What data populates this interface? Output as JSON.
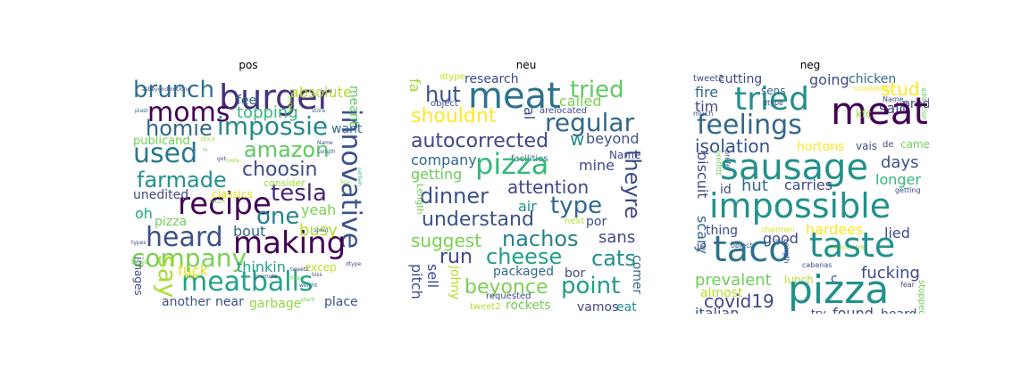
{
  "panels": [
    {
      "title": "pos",
      "words": [
        {
          "t": "burger",
          "c": "#46317e"
        },
        {
          "t": "brunch",
          "c": "#2c728e"
        },
        {
          "t": "moms",
          "c": "#440154"
        },
        {
          "t": "impossie",
          "c": "#238a8d"
        },
        {
          "t": "homie",
          "c": "#31688e"
        },
        {
          "t": "innovative",
          "c": "#3b528b"
        },
        {
          "t": "amazon",
          "c": "#5ec962"
        },
        {
          "t": "used",
          "c": "#2a788e"
        },
        {
          "t": "choosin",
          "c": "#3e4a89"
        },
        {
          "t": "farmade",
          "c": "#21918c"
        },
        {
          "t": "recipe",
          "c": "#440154"
        },
        {
          "t": "tesla",
          "c": "#482878"
        },
        {
          "t": "one",
          "c": "#26828e"
        },
        {
          "t": "heard",
          "c": "#3b528b"
        },
        {
          "t": "making",
          "c": "#440154"
        },
        {
          "t": "company",
          "c": "#7ad151"
        },
        {
          "t": "meatballs",
          "c": "#20a486"
        },
        {
          "t": "say",
          "c": "#aadc32"
        },
        {
          "t": "absolute",
          "c": "#b5de2b"
        },
        {
          "t": "topping",
          "c": "#35b779"
        },
        {
          "t": "feel",
          "c": "#31688e"
        },
        {
          "t": "want",
          "c": "#31688e"
        },
        {
          "t": "meant",
          "c": "#5ec962"
        },
        {
          "t": "publicand",
          "c": "#6ece58"
        },
        {
          "t": "unedited",
          "c": "#3e4a89"
        },
        {
          "t": "classics",
          "c": "#dfe318"
        },
        {
          "t": "oh",
          "c": "#22a884"
        },
        {
          "t": "pizza",
          "c": "#6ece58"
        },
        {
          "t": "yeah",
          "c": "#7ad151"
        },
        {
          "t": "busy",
          "c": "#b5de2b"
        },
        {
          "t": "bout",
          "c": "#31688e"
        },
        {
          "t": "fuck",
          "c": "#dfe318"
        },
        {
          "t": "thinkin",
          "c": "#1f9e89"
        },
        {
          "t": "excep",
          "c": "#bddf26"
        },
        {
          "t": "another",
          "c": "#3b528b"
        },
        {
          "t": "near",
          "c": "#3e4a89"
        },
        {
          "t": "garbage",
          "c": "#90d743"
        },
        {
          "t": "place",
          "c": "#3b528b"
        },
        {
          "t": "images",
          "c": "#3e4a89"
        },
        {
          "t": "consider",
          "c": "#a0da39"
        },
        {
          "t": "asbeyondblocking",
          "c": "#3e4a89"
        },
        {
          "t": "better",
          "c": "#8fd744"
        },
        {
          "t": "plast",
          "c": "#31688e"
        },
        {
          "t": "store",
          "c": "#31688e"
        },
        {
          "t": "Name",
          "c": "#3e4a89"
        },
        {
          "t": "Length",
          "c": "#31688e"
        },
        {
          "t": "certain",
          "c": "#35b779"
        },
        {
          "t": "spent",
          "c": "#31688e"
        },
        {
          "t": "dtype",
          "c": "#3e4a89"
        },
        {
          "t": "types",
          "c": "#3e4a89"
        },
        {
          "t": "based",
          "c": "#6ece58"
        },
        {
          "t": "tweet2",
          "c": "#3e4a89"
        },
        {
          "t": "fiber",
          "c": "#6ece58"
        },
        {
          "t": "loss",
          "c": "#3e4a89"
        },
        {
          "t": "weight",
          "c": "#31688e"
        },
        {
          "t": "plant",
          "c": "#6ece58"
        },
        {
          "t": "promote",
          "c": "#3e4a89"
        },
        {
          "t": "taste",
          "c": "#a0da39"
        },
        {
          "t": "object",
          "c": "#dfe318"
        },
        {
          "t": "block",
          "c": "#a0da39"
        },
        {
          "t": "got",
          "c": "#3e4a89"
        },
        {
          "t": "lo",
          "c": "#6ece58"
        },
        {
          "t": "much",
          "c": "#6ece58"
        },
        {
          "t": "buy",
          "c": "#a0da39"
        }
      ]
    },
    {
      "title": "neu",
      "words": [
        {
          "t": "meat",
          "c": "#2c728e"
        },
        {
          "t": "tried",
          "c": "#5ec962"
        },
        {
          "t": "hut",
          "c": "#3b528b"
        },
        {
          "t": "fa",
          "c": "#a0da39"
        },
        {
          "t": "research",
          "c": "#3e4a89"
        },
        {
          "t": "dtype",
          "c": "#c8e020"
        },
        {
          "t": "regular",
          "c": "#31688e"
        },
        {
          "t": "called",
          "c": "#7ad151"
        },
        {
          "t": "shouldnt",
          "c": "#fde725"
        },
        {
          "t": "al",
          "c": "#3e4a89"
        },
        {
          "t": "arelocated",
          "c": "#3e4a89"
        },
        {
          "t": "object",
          "c": "#3e4a89"
        },
        {
          "t": "autocorrected",
          "c": "#404688"
        },
        {
          "t": "w",
          "c": "#21918c"
        },
        {
          "t": "beyond",
          "c": "#3b528b"
        },
        {
          "t": "company",
          "c": "#31688e"
        },
        {
          "t": "facilities",
          "c": "#31688e"
        },
        {
          "t": "Name",
          "c": "#3e4a89"
        },
        {
          "t": "pizza",
          "c": "#35b779"
        },
        {
          "t": "mine",
          "c": "#3e4a89"
        },
        {
          "t": "theyre",
          "c": "#3e4a89"
        },
        {
          "t": "getting",
          "c": "#6ece58"
        },
        {
          "t": "attention",
          "c": "#3e4a89"
        },
        {
          "t": "dinner",
          "c": "#3b528b"
        },
        {
          "t": "type",
          "c": "#31688e"
        },
        {
          "t": "Length",
          "c": "#6ece58"
        },
        {
          "t": "air",
          "c": "#21918c"
        },
        {
          "t": "understand",
          "c": "#3b528b"
        },
        {
          "t": "por",
          "c": "#3e4a89"
        },
        {
          "t": "next",
          "c": "#b5de2b"
        },
        {
          "t": "suggest",
          "c": "#7ad151"
        },
        {
          "t": "nachos",
          "c": "#26828e"
        },
        {
          "t": "sans",
          "c": "#3e4a89"
        },
        {
          "t": "run",
          "c": "#3e4a89"
        },
        {
          "t": "cheese",
          "c": "#1f9e89"
        },
        {
          "t": "cats",
          "c": "#21918c"
        },
        {
          "t": "sell",
          "c": "#3e4a89"
        },
        {
          "t": "pitch",
          "c": "#3e4a89"
        },
        {
          "t": "johny",
          "c": "#b5de2b"
        },
        {
          "t": "packaged",
          "c": "#31688e"
        },
        {
          "t": "bor",
          "c": "#3e4a89"
        },
        {
          "t": "beyonce",
          "c": "#7ad151"
        },
        {
          "t": "point",
          "c": "#1f9e89"
        },
        {
          "t": "comer",
          "c": "#31688e"
        },
        {
          "t": "requested",
          "c": "#3e4a89"
        },
        {
          "t": "vamos",
          "c": "#3e4a89"
        },
        {
          "t": "eat",
          "c": "#21918c"
        },
        {
          "t": "tweet2",
          "c": "#b5de2b"
        },
        {
          "t": "rockets",
          "c": "#6ece58"
        }
      ]
    },
    {
      "title": "neg",
      "words": [
        {
          "t": "tweet2",
          "c": "#3e4a89"
        },
        {
          "t": "cutting",
          "c": "#3e4a89"
        },
        {
          "t": "tried",
          "c": "#21918c"
        },
        {
          "t": "chicken",
          "c": "#31688e"
        },
        {
          "t": "screaming",
          "c": "#fde725"
        },
        {
          "t": "stud",
          "c": "#fde725"
        },
        {
          "t": "addiction",
          "c": "#6ece58"
        },
        {
          "t": "fire",
          "c": "#31688e"
        },
        {
          "t": "sens",
          "c": "#31688e"
        },
        {
          "t": "going",
          "c": "#3e4a89"
        },
        {
          "t": "said",
          "c": "#3e4a89"
        },
        {
          "t": "produ",
          "c": "#3e4a89"
        },
        {
          "t": "tim",
          "c": "#3e4a89"
        },
        {
          "t": "dtype",
          "c": "#3e4a89"
        },
        {
          "t": "Name",
          "c": "#3e4a89"
        },
        {
          "t": "much",
          "c": "#3e4a89"
        },
        {
          "t": "meat",
          "c": "#440154"
        },
        {
          "t": "kfc",
          "c": "#a0da39"
        },
        {
          "t": "feelings",
          "c": "#31688e"
        },
        {
          "t": "isolation",
          "c": "#3b528b"
        },
        {
          "t": "hortons",
          "c": "#fde725"
        },
        {
          "t": "vais",
          "c": "#3e4a89"
        },
        {
          "t": "de",
          "c": "#3e4a89"
        },
        {
          "t": "came",
          "c": "#6ece58"
        },
        {
          "t": "biscuit",
          "c": "#3e4a89"
        },
        {
          "t": "prettttt",
          "c": "#6ece58"
        },
        {
          "t": "prefer",
          "c": "#3e4a89"
        },
        {
          "t": "sausage",
          "c": "#21918c"
        },
        {
          "t": "days",
          "c": "#3b528b"
        },
        {
          "t": "longer",
          "c": "#35b779"
        },
        {
          "t": "id",
          "c": "#3e4a89"
        },
        {
          "t": "hut",
          "c": "#31688e"
        },
        {
          "t": "carries",
          "c": "#3e4a89"
        },
        {
          "t": "getting",
          "c": "#3e4a89"
        },
        {
          "t": "scary",
          "c": "#31688e"
        },
        {
          "t": "impossible",
          "c": "#21918c"
        },
        {
          "t": "thing",
          "c": "#3e4a89"
        },
        {
          "t": "chairman",
          "c": "#dfe318"
        },
        {
          "t": "good",
          "c": "#3e4a89"
        },
        {
          "t": "hardees",
          "c": "#fde725"
        },
        {
          "t": "lied",
          "c": "#3e4a89"
        },
        {
          "t": "je",
          "c": "#3e4a89"
        },
        {
          "t": "object",
          "c": "#3e4a89"
        },
        {
          "t": "le",
          "c": "#3e4a89"
        },
        {
          "t": "rencontrer",
          "c": "#b5de2b"
        },
        {
          "t": "taco",
          "c": "#2c728e"
        },
        {
          "t": "taste",
          "c": "#21918c"
        },
        {
          "t": "Length",
          "c": "#3e4a89"
        },
        {
          "t": "prevalent",
          "c": "#6ece58"
        },
        {
          "t": "lunch",
          "c": "#b5de2b"
        },
        {
          "t": "c",
          "c": "#3e4a89"
        },
        {
          "t": "fucking",
          "c": "#3e4a89"
        },
        {
          "t": "cabanas",
          "c": "#3e4a89"
        },
        {
          "t": "almost",
          "c": "#b5de2b"
        },
        {
          "t": "covid19",
          "c": "#3e4a89"
        },
        {
          "t": "pizza",
          "c": "#21918c"
        },
        {
          "t": "fear",
          "c": "#3e4a89"
        },
        {
          "t": "stopped",
          "c": "#6ece58"
        },
        {
          "t": "italian",
          "c": "#3e4a89"
        },
        {
          "t": "try",
          "c": "#3e4a89"
        },
        {
          "t": "found",
          "c": "#3e4a89"
        },
        {
          "t": "heard",
          "c": "#3e4a89"
        }
      ]
    }
  ]
}
